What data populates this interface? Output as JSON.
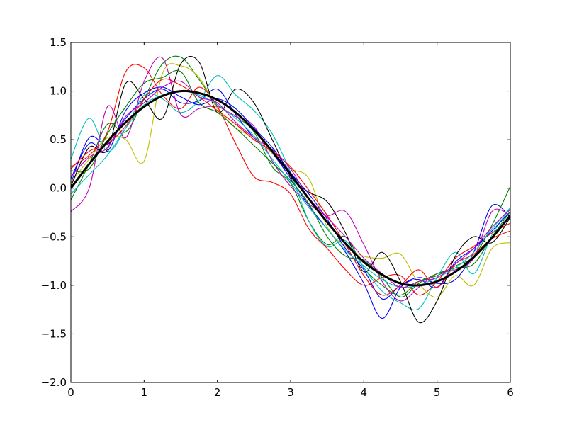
{
  "chart_data": {
    "type": "line",
    "title": "",
    "xlabel": "",
    "ylabel": "",
    "xlim": [
      0,
      6
    ],
    "ylim": [
      -2.0,
      1.5
    ],
    "grid": false,
    "legend": "none",
    "xticks": [
      {
        "value": 0,
        "label": "0"
      },
      {
        "value": 1,
        "label": "1"
      },
      {
        "value": 2,
        "label": "2"
      },
      {
        "value": 3,
        "label": "3"
      },
      {
        "value": 4,
        "label": "4"
      },
      {
        "value": 5,
        "label": "5"
      },
      {
        "value": 6,
        "label": "6"
      }
    ],
    "yticks": [
      {
        "value": 1.5,
        "label": "1.5"
      },
      {
        "value": 1.0,
        "label": "1.0"
      },
      {
        "value": 0.5,
        "label": "0.5"
      },
      {
        "value": 0.0,
        "label": "0.0"
      },
      {
        "value": -0.5,
        "label": "−0.5"
      },
      {
        "value": -1.0,
        "label": "−1.0"
      },
      {
        "value": -1.5,
        "label": "−1.5"
      },
      {
        "value": -2.0,
        "label": "−2.0"
      }
    ],
    "x": [
      0,
      0.25,
      0.5,
      0.75,
      1.0,
      1.25,
      1.5,
      1.75,
      2.0,
      2.25,
      2.5,
      2.75,
      3.0,
      3.25,
      3.5,
      3.75,
      4.0,
      4.25,
      4.5,
      4.75,
      5.0,
      5.25,
      5.5,
      5.75,
      6.0
    ],
    "mean_series": {
      "color": "#000000",
      "values": [
        0.0,
        0.25,
        0.48,
        0.68,
        0.84,
        0.95,
        1.0,
        0.98,
        0.91,
        0.78,
        0.6,
        0.38,
        0.14,
        -0.11,
        -0.35,
        -0.57,
        -0.76,
        -0.89,
        -0.98,
        -1.0,
        -0.96,
        -0.86,
        -0.71,
        -0.51,
        -0.28
      ]
    },
    "series": [
      {
        "color": "#0000ff",
        "values": [
          0.05,
          0.52,
          0.45,
          0.72,
          0.92,
          1.02,
          0.88,
          0.9,
          1.02,
          0.76,
          0.52,
          0.36,
          0.1,
          -0.18,
          -0.42,
          -0.66,
          -0.98,
          -1.34,
          -1.02,
          -0.92,
          -0.98,
          -0.94,
          -0.66,
          -0.18,
          -0.3
        ]
      },
      {
        "color": "#008000",
        "values": [
          -0.12,
          0.25,
          0.66,
          0.58,
          0.92,
          1.28,
          1.35,
          1.12,
          0.86,
          0.74,
          0.58,
          0.22,
          0.05,
          -0.34,
          -0.58,
          -0.5,
          -0.82,
          -1.0,
          -1.1,
          -0.96,
          -0.9,
          -0.8,
          -0.7,
          -0.38,
          0.02
        ]
      },
      {
        "color": "#ff0000",
        "values": [
          0.22,
          0.34,
          0.58,
          1.2,
          1.24,
          0.96,
          0.82,
          1.04,
          0.84,
          0.46,
          0.12,
          0.06,
          -0.06,
          -0.42,
          -0.62,
          -0.84,
          -1.0,
          -0.92,
          -0.9,
          -1.1,
          -0.96,
          -0.72,
          -0.6,
          -0.46,
          -0.36
        ]
      },
      {
        "color": "#00bfbf",
        "values": [
          0.3,
          0.72,
          0.38,
          0.62,
          0.96,
          0.92,
          0.78,
          0.9,
          1.16,
          0.96,
          0.8,
          0.56,
          0.16,
          -0.34,
          -0.6,
          -0.54,
          -0.82,
          -1.06,
          -1.18,
          -1.24,
          -0.92,
          -0.66,
          -0.88,
          -0.48,
          -0.2
        ]
      },
      {
        "color": "#bf00bf",
        "values": [
          -0.24,
          0.0,
          0.84,
          0.52,
          1.1,
          1.34,
          0.76,
          0.82,
          0.84,
          0.74,
          0.64,
          0.28,
          0.02,
          -0.16,
          -0.28,
          -0.24,
          -0.58,
          -0.96,
          -1.16,
          -1.02,
          -0.88,
          -0.84,
          -0.72,
          -0.24,
          -0.28
        ]
      },
      {
        "color": "#bfbf00",
        "values": [
          0.06,
          0.3,
          0.52,
          0.5,
          0.28,
          1.18,
          1.26,
          1.14,
          0.82,
          0.62,
          0.52,
          0.36,
          0.2,
          0.1,
          -0.4,
          -0.6,
          -0.7,
          -0.72,
          -0.68,
          -0.98,
          -1.12,
          -0.9,
          -1.0,
          -0.62,
          -0.56
        ]
      },
      {
        "color": "#000000",
        "values": [
          0.02,
          0.42,
          0.4,
          1.08,
          0.92,
          0.72,
          1.28,
          1.3,
          0.78,
          1.02,
          0.88,
          0.5,
          0.12,
          -0.04,
          -0.14,
          -0.46,
          -0.86,
          -0.66,
          -0.96,
          -1.38,
          -1.16,
          -0.7,
          -0.5,
          -0.56,
          -0.3
        ]
      },
      {
        "color": "#0000ff",
        "values": [
          0.1,
          0.46,
          0.38,
          0.8,
          0.98,
          1.04,
          0.94,
          0.86,
          0.92,
          0.82,
          0.62,
          0.42,
          0.16,
          -0.06,
          -0.32,
          -0.62,
          -0.84,
          -1.14,
          -1.0,
          -0.94,
          -1.02,
          -0.76,
          -0.62,
          -0.44,
          -0.24
        ]
      },
      {
        "color": "#008000",
        "values": [
          0.18,
          0.2,
          0.56,
          0.84,
          1.08,
          1.14,
          1.2,
          0.88,
          0.78,
          0.62,
          0.44,
          0.26,
          0.08,
          -0.16,
          -0.5,
          -0.7,
          -0.74,
          -0.92,
          -1.12,
          -0.98,
          -0.88,
          -0.82,
          -0.78,
          -0.5,
          -0.24
        ]
      },
      {
        "color": "#ff0000",
        "values": [
          0.2,
          0.38,
          0.46,
          0.64,
          0.92,
          1.12,
          1.06,
          0.94,
          0.8,
          0.66,
          0.5,
          0.38,
          0.22,
          -0.02,
          -0.28,
          -0.58,
          -0.9,
          -1.1,
          -1.0,
          -0.84,
          -1.02,
          -0.78,
          -0.68,
          -0.52,
          -0.44
        ]
      },
      {
        "color": "#00bfbf",
        "values": [
          -0.06,
          0.14,
          0.34,
          0.62,
          0.86,
          0.96,
          1.0,
          0.96,
          0.86,
          0.72,
          0.54,
          0.3,
          0.06,
          -0.2,
          -0.42,
          -0.64,
          -0.8,
          -0.94,
          -1.02,
          -1.0,
          -0.92,
          -0.82,
          -0.66,
          -0.42,
          -0.2
        ]
      },
      {
        "color": "#bf00bf",
        "values": [
          0.12,
          0.32,
          0.42,
          0.74,
          0.88,
          1.04,
          1.1,
          0.94,
          0.88,
          0.68,
          0.52,
          0.4,
          0.2,
          -0.1,
          -0.3,
          -0.5,
          -0.72,
          -0.88,
          -1.02,
          -0.96,
          -0.92,
          -0.78,
          -0.62,
          -0.4,
          -0.22
        ]
      }
    ]
  }
}
